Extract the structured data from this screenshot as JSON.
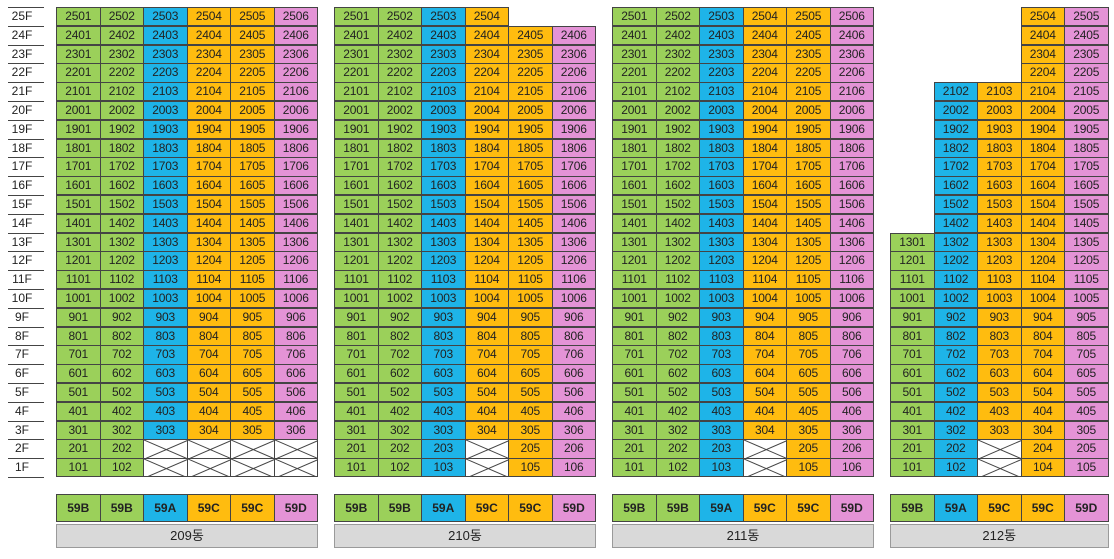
{
  "colors": {
    "59B": "#9bd05a",
    "59A": "#1eb4e8",
    "59C": "#ffbc0f",
    "59D": "#e493d6",
    "empty": "#ffffff",
    "label_bg": "#d9d9d9"
  },
  "floors": [
    "25F",
    "24F",
    "23F",
    "22F",
    "21F",
    "20F",
    "19F",
    "18F",
    "17F",
    "16F",
    "15F",
    "14F",
    "13F",
    "12F",
    "11F",
    "10F",
    "9F",
    "8F",
    "7F",
    "6F",
    "5F",
    "4F",
    "3F",
    "2F",
    "1F"
  ],
  "buildings": [
    {
      "name": "209동",
      "column_types": [
        "59B",
        "59B",
        "59A",
        "59C",
        "59C",
        "59D"
      ],
      "floor_units": {
        "25": [
          1,
          2,
          3,
          4,
          5,
          6
        ],
        "24": [
          1,
          2,
          3,
          4,
          5,
          6
        ],
        "23": [
          1,
          2,
          3,
          4,
          5,
          6
        ],
        "22": [
          1,
          2,
          3,
          4,
          5,
          6
        ],
        "21": [
          1,
          2,
          3,
          4,
          5,
          6
        ],
        "20": [
          1,
          2,
          3,
          4,
          5,
          6
        ],
        "19": [
          1,
          2,
          3,
          4,
          5,
          6
        ],
        "18": [
          1,
          2,
          3,
          4,
          5,
          6
        ],
        "17": [
          1,
          2,
          3,
          4,
          5,
          6
        ],
        "16": [
          1,
          2,
          3,
          4,
          5,
          6
        ],
        "15": [
          1,
          2,
          3,
          4,
          5,
          6
        ],
        "14": [
          1,
          2,
          3,
          4,
          5,
          6
        ],
        "13": [
          1,
          2,
          3,
          4,
          5,
          6
        ],
        "12": [
          1,
          2,
          3,
          4,
          5,
          6
        ],
        "11": [
          1,
          2,
          3,
          4,
          5,
          6
        ],
        "10": [
          1,
          2,
          3,
          4,
          5,
          6
        ],
        "9": [
          1,
          2,
          3,
          4,
          5,
          6
        ],
        "8": [
          1,
          2,
          3,
          4,
          5,
          6
        ],
        "7": [
          1,
          2,
          3,
          4,
          5,
          6
        ],
        "6": [
          1,
          2,
          3,
          4,
          5,
          6
        ],
        "5": [
          1,
          2,
          3,
          4,
          5,
          6
        ],
        "4": [
          1,
          2,
          3,
          4,
          5,
          6
        ],
        "3": [
          1,
          2,
          3,
          4,
          5,
          6
        ],
        "2": [
          1,
          2,
          "x",
          "x",
          "x",
          "x"
        ],
        "1": [
          1,
          2,
          "x",
          "x",
          "x",
          "x"
        ]
      }
    },
    {
      "name": "210동",
      "column_types": [
        "59B",
        "59B",
        "59A",
        "59C",
        "59C",
        "59D"
      ],
      "floor_units": {
        "25": [
          1,
          2,
          3,
          4,
          null,
          null
        ],
        "24": [
          1,
          2,
          3,
          4,
          5,
          6
        ],
        "23": [
          1,
          2,
          3,
          4,
          5,
          6
        ],
        "22": [
          1,
          2,
          3,
          4,
          5,
          6
        ],
        "21": [
          1,
          2,
          3,
          4,
          5,
          6
        ],
        "20": [
          1,
          2,
          3,
          4,
          5,
          6
        ],
        "19": [
          1,
          2,
          3,
          4,
          5,
          6
        ],
        "18": [
          1,
          2,
          3,
          4,
          5,
          6
        ],
        "17": [
          1,
          2,
          3,
          4,
          5,
          6
        ],
        "16": [
          1,
          2,
          3,
          4,
          5,
          6
        ],
        "15": [
          1,
          2,
          3,
          4,
          5,
          6
        ],
        "14": [
          1,
          2,
          3,
          4,
          5,
          6
        ],
        "13": [
          1,
          2,
          3,
          4,
          5,
          6
        ],
        "12": [
          1,
          2,
          3,
          4,
          5,
          6
        ],
        "11": [
          1,
          2,
          3,
          4,
          5,
          6
        ],
        "10": [
          1,
          2,
          3,
          4,
          5,
          6
        ],
        "9": [
          1,
          2,
          3,
          4,
          5,
          6
        ],
        "8": [
          1,
          2,
          3,
          4,
          5,
          6
        ],
        "7": [
          1,
          2,
          3,
          4,
          5,
          6
        ],
        "6": [
          1,
          2,
          3,
          4,
          5,
          6
        ],
        "5": [
          1,
          2,
          3,
          4,
          5,
          6
        ],
        "4": [
          1,
          2,
          3,
          4,
          5,
          6
        ],
        "3": [
          1,
          2,
          3,
          4,
          5,
          6
        ],
        "2": [
          1,
          2,
          3,
          "x",
          5,
          6
        ],
        "1": [
          1,
          2,
          3,
          "x",
          5,
          6
        ]
      }
    },
    {
      "name": "211동",
      "column_types": [
        "59B",
        "59B",
        "59A",
        "59C",
        "59C",
        "59D"
      ],
      "floor_units": {
        "25": [
          1,
          2,
          3,
          4,
          5,
          6
        ],
        "24": [
          1,
          2,
          3,
          4,
          5,
          6
        ],
        "23": [
          1,
          2,
          3,
          4,
          5,
          6
        ],
        "22": [
          1,
          2,
          3,
          4,
          5,
          6
        ],
        "21": [
          1,
          2,
          3,
          4,
          5,
          6
        ],
        "20": [
          1,
          2,
          3,
          4,
          5,
          6
        ],
        "19": [
          1,
          2,
          3,
          4,
          5,
          6
        ],
        "18": [
          1,
          2,
          3,
          4,
          5,
          6
        ],
        "17": [
          1,
          2,
          3,
          4,
          5,
          6
        ],
        "16": [
          1,
          2,
          3,
          4,
          5,
          6
        ],
        "15": [
          1,
          2,
          3,
          4,
          5,
          6
        ],
        "14": [
          1,
          2,
          3,
          4,
          5,
          6
        ],
        "13": [
          1,
          2,
          3,
          4,
          5,
          6
        ],
        "12": [
          1,
          2,
          3,
          4,
          5,
          6
        ],
        "11": [
          1,
          2,
          3,
          4,
          5,
          6
        ],
        "10": [
          1,
          2,
          3,
          4,
          5,
          6
        ],
        "9": [
          1,
          2,
          3,
          4,
          5,
          6
        ],
        "8": [
          1,
          2,
          3,
          4,
          5,
          6
        ],
        "7": [
          1,
          2,
          3,
          4,
          5,
          6
        ],
        "6": [
          1,
          2,
          3,
          4,
          5,
          6
        ],
        "5": [
          1,
          2,
          3,
          4,
          5,
          6
        ],
        "4": [
          1,
          2,
          3,
          4,
          5,
          6
        ],
        "3": [
          1,
          2,
          3,
          4,
          5,
          6
        ],
        "2": [
          1,
          2,
          3,
          "x",
          5,
          6
        ],
        "1": [
          1,
          2,
          3,
          "x",
          5,
          6
        ]
      }
    },
    {
      "name": "212동",
      "column_types": [
        "59B",
        "59A",
        "59C",
        "59C",
        "59D"
      ],
      "floor_units": {
        "25": [
          null,
          null,
          null,
          4,
          5
        ],
        "24": [
          null,
          null,
          null,
          4,
          5
        ],
        "23": [
          null,
          null,
          null,
          4,
          5
        ],
        "22": [
          null,
          null,
          null,
          4,
          5
        ],
        "21": [
          null,
          2,
          3,
          4,
          5
        ],
        "20": [
          null,
          2,
          3,
          4,
          5
        ],
        "19": [
          null,
          2,
          3,
          4,
          5
        ],
        "18": [
          null,
          2,
          3,
          4,
          5
        ],
        "17": [
          null,
          2,
          3,
          4,
          5
        ],
        "16": [
          null,
          2,
          3,
          4,
          5
        ],
        "15": [
          null,
          2,
          3,
          4,
          5
        ],
        "14": [
          null,
          2,
          3,
          4,
          5
        ],
        "13": [
          1,
          2,
          3,
          4,
          5
        ],
        "12": [
          1,
          2,
          3,
          4,
          5
        ],
        "11": [
          1,
          2,
          3,
          4,
          5
        ],
        "10": [
          1,
          2,
          3,
          4,
          5
        ],
        "9": [
          1,
          2,
          3,
          4,
          5
        ],
        "8": [
          1,
          2,
          3,
          4,
          5
        ],
        "7": [
          1,
          2,
          3,
          4,
          5
        ],
        "6": [
          1,
          2,
          3,
          4,
          5
        ],
        "5": [
          1,
          2,
          3,
          4,
          5
        ],
        "4": [
          1,
          2,
          3,
          4,
          5
        ],
        "3": [
          1,
          2,
          3,
          4,
          5
        ],
        "2": [
          1,
          2,
          "x",
          4,
          5
        ],
        "1": [
          1,
          2,
          "x",
          4,
          5
        ]
      }
    }
  ]
}
